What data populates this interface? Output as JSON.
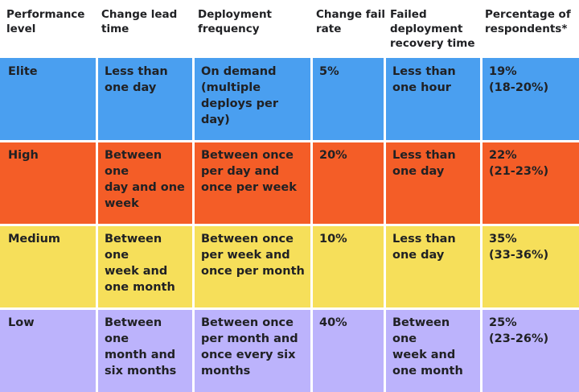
{
  "table": {
    "headers": [
      "Performance\nlevel",
      "Change lead\ntime",
      "Deployment\nfrequency",
      "Change fail\nrate",
      "Failed\ndeployment\nrecovery time",
      "Percentage of\nrespondents*"
    ],
    "rows": [
      {
        "level": "Elite",
        "lead_time": "Less than\none day",
        "frequency": "On demand\n(multiple\ndeploys per day)",
        "fail_rate": "5%",
        "recovery": "Less than\none hour",
        "percentage": "19%\n(18-20%)",
        "color": "#4a9ff0"
      },
      {
        "level": "High",
        "lead_time": "Between one\nday and one\nweek",
        "frequency": "Between once\nper day and\nonce per week",
        "fail_rate": "20%",
        "recovery": "Less than\none day",
        "percentage": "22%\n(21-23%)",
        "color": "#f45d27"
      },
      {
        "level": "Medium",
        "lead_time": "Between one\nweek and\none month",
        "frequency": "Between once\nper week and\nonce per month",
        "fail_rate": "10%",
        "recovery": "Less than\none day",
        "percentage": "35%\n(33-36%)",
        "color": "#f6df5a"
      },
      {
        "level": "Low",
        "lead_time": "Between one\nmonth and\nsix months",
        "frequency": "Between once\nper month and\nonce every six\nmonths",
        "fail_rate": "40%",
        "recovery": "Between one\nweek and\none month",
        "percentage": "25%\n(23-26%)",
        "color": "#bcb3fc"
      }
    ]
  }
}
